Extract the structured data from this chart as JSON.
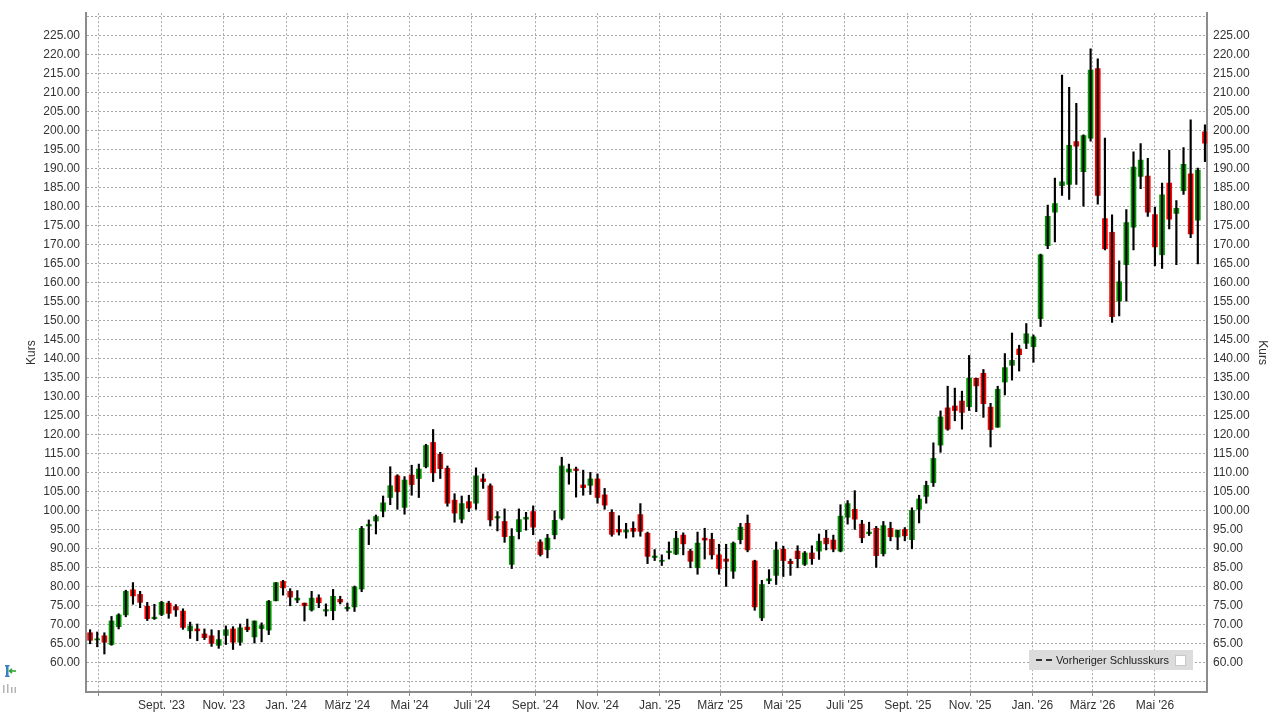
{
  "chart_data": {
    "type": "candlestick",
    "x": [
      "2023-06-23",
      "2023-06-30",
      "2023-07-07",
      "2023-07-14",
      "2023-07-21",
      "2023-07-28",
      "2023-08-04",
      "2023-08-11",
      "2023-08-18",
      "2023-08-25",
      "2023-09-01",
      "2023-09-08",
      "2023-09-15",
      "2023-09-22",
      "2023-09-29",
      "2023-10-06",
      "2023-10-13",
      "2023-10-20",
      "2023-10-27",
      "2023-11-03",
      "2023-11-10",
      "2023-11-17",
      "2023-11-24",
      "2023-12-01",
      "2023-12-08",
      "2023-12-15",
      "2023-12-22",
      "2023-12-29",
      "2024-01-05",
      "2024-01-12",
      "2024-01-19",
      "2024-01-26",
      "2024-02-02",
      "2024-02-09",
      "2024-02-16",
      "2024-02-23",
      "2024-03-01",
      "2024-03-08",
      "2024-03-15",
      "2024-03-22",
      "2024-03-29",
      "2024-04-05",
      "2024-04-12",
      "2024-04-19",
      "2024-04-26",
      "2024-05-03",
      "2024-05-10",
      "2024-05-17",
      "2024-05-24",
      "2024-05-31",
      "2024-06-07",
      "2024-06-14",
      "2024-06-21",
      "2024-06-28",
      "2024-07-05",
      "2024-07-12",
      "2024-07-19",
      "2024-07-26",
      "2024-08-02",
      "2024-08-09",
      "2024-08-16",
      "2024-08-23",
      "2024-08-30",
      "2024-09-06",
      "2024-09-13",
      "2024-09-20",
      "2024-09-27",
      "2024-10-04",
      "2024-10-11",
      "2024-10-18",
      "2024-10-25",
      "2024-11-01",
      "2024-11-08",
      "2024-11-15",
      "2024-11-22",
      "2024-11-29",
      "2024-12-06",
      "2024-12-13",
      "2024-12-20",
      "2024-12-27",
      "2025-01-03",
      "2025-01-10",
      "2025-01-17",
      "2025-01-24",
      "2025-01-31",
      "2025-02-07",
      "2025-02-14",
      "2025-02-21",
      "2025-02-28",
      "2025-03-07",
      "2025-03-14",
      "2025-03-21",
      "2025-03-28",
      "2025-04-04",
      "2025-04-11",
      "2025-04-18",
      "2025-04-25",
      "2025-05-02",
      "2025-05-09",
      "2025-05-16",
      "2025-05-23",
      "2025-05-30",
      "2025-06-06",
      "2025-06-13",
      "2025-06-20",
      "2025-06-27",
      "2025-07-04",
      "2025-07-11",
      "2025-07-18",
      "2025-07-25",
      "2025-08-01",
      "2025-08-08",
      "2025-08-15",
      "2025-08-22",
      "2025-08-29",
      "2025-09-05",
      "2025-09-12",
      "2025-09-19",
      "2025-09-26",
      "2025-10-03",
      "2025-10-10",
      "2025-10-17",
      "2025-10-24",
      "2025-10-31",
      "2025-11-07",
      "2025-11-14",
      "2025-11-21",
      "2025-11-28",
      "2025-12-05",
      "2025-12-12",
      "2025-12-19",
      "2025-12-26",
      "2026-01-02",
      "2026-01-09",
      "2026-01-16",
      "2026-01-23",
      "2026-01-30",
      "2026-02-06",
      "2026-02-13",
      "2026-02-20",
      "2026-02-27",
      "2026-03-06",
      "2026-03-13",
      "2026-03-20",
      "2026-03-27",
      "2026-04-03",
      "2026-04-10",
      "2026-04-17",
      "2026-04-24",
      "2026-05-01",
      "2026-05-08",
      "2026-05-15",
      "2026-05-22",
      "2026-05-29",
      "2026-06-05",
      "2026-06-12",
      "2026-06-19"
    ],
    "ohlc": [
      [
        67.9,
        68.7,
        65.0,
        65.9
      ],
      [
        66.0,
        68.1,
        64.2,
        66.3
      ],
      [
        67.1,
        67.9,
        62.3,
        65.4
      ],
      [
        64.8,
        72.2,
        64.6,
        71.0
      ],
      [
        69.5,
        72.9,
        68.9,
        72.6
      ],
      [
        72.6,
        79.1,
        72.1,
        78.8
      ],
      [
        79.2,
        81.1,
        75.4,
        77.6
      ],
      [
        78.0,
        78.8,
        74.5,
        75.9
      ],
      [
        74.9,
        75.9,
        71.1,
        71.6
      ],
      [
        71.6,
        75.4,
        71.4,
        72.0
      ],
      [
        72.7,
        76.2,
        72.4,
        75.9
      ],
      [
        75.7,
        76.2,
        71.7,
        73.0
      ],
      [
        74.8,
        75.3,
        72.2,
        73.9
      ],
      [
        73.6,
        74.2,
        68.8,
        69.3
      ],
      [
        68.4,
        70.7,
        66.4,
        69.7
      ],
      [
        68.9,
        70.2,
        65.8,
        68.4
      ],
      [
        67.6,
        68.9,
        66.1,
        66.6
      ],
      [
        67.1,
        68.7,
        64.3,
        65.1
      ],
      [
        64.6,
        68.5,
        63.8,
        66.1
      ],
      [
        67.2,
        69.7,
        64.8,
        68.7
      ],
      [
        68.9,
        69.5,
        63.5,
        65.4
      ],
      [
        65.4,
        70.2,
        64.6,
        69.2
      ],
      [
        69.4,
        71.5,
        68.2,
        68.7
      ],
      [
        66.8,
        71.0,
        65.2,
        71.0
      ],
      [
        69.0,
        70.5,
        65.5,
        69.8
      ],
      [
        68.6,
        76.4,
        67.4,
        76.2
      ],
      [
        76.3,
        81.1,
        76.3,
        81.1
      ],
      [
        81.4,
        81.7,
        77.8,
        79.7
      ],
      [
        78.8,
        79.5,
        75.0,
        77.3
      ],
      [
        76.5,
        79.0,
        75.8,
        77.0
      ],
      [
        75.7,
        75.7,
        71.0,
        75.0
      ],
      [
        73.9,
        78.8,
        73.6,
        77.0
      ],
      [
        77.1,
        77.9,
        74.5,
        75.8
      ],
      [
        73.6,
        75.5,
        72.3,
        74.0
      ],
      [
        73.7,
        79.3,
        71.3,
        77.5
      ],
      [
        76.7,
        77.5,
        75.5,
        76.0
      ],
      [
        74.2,
        75.7,
        73.6,
        74.6
      ],
      [
        74.7,
        80.2,
        73.5,
        79.9
      ],
      [
        79.4,
        95.9,
        78.7,
        95.4
      ],
      [
        96.0,
        97.6,
        91.1,
        96.4
      ],
      [
        97.3,
        98.9,
        93.9,
        98.5
      ],
      [
        99.9,
        103.9,
        98.4,
        102.1
      ],
      [
        103.5,
        111.6,
        101.6,
        106.6
      ],
      [
        109.2,
        109.5,
        100.4,
        105.0
      ],
      [
        100.9,
        109.0,
        99.1,
        108.1
      ],
      [
        109.4,
        112.0,
        104.1,
        106.9
      ],
      [
        108.5,
        112.3,
        103.5,
        111.0
      ],
      [
        111.6,
        117.5,
        111.3,
        117.2
      ],
      [
        118.0,
        121.4,
        107.7,
        110.0
      ],
      [
        114.9,
        115.4,
        108.5,
        111.1
      ],
      [
        111.2,
        111.8,
        101.2,
        102.0
      ],
      [
        102.8,
        104.5,
        97.0,
        99.4
      ],
      [
        97.8,
        103.9,
        96.8,
        101.9
      ],
      [
        102.4,
        104.1,
        99.8,
        100.7
      ],
      [
        102.0,
        111.3,
        100.4,
        109.2
      ],
      [
        108.4,
        109.7,
        105.9,
        107.7
      ],
      [
        106.6,
        107.1,
        96.0,
        97.6
      ],
      [
        98.1,
        99.8,
        94.7,
        98.5
      ],
      [
        97.2,
        100.5,
        91.7,
        93.2
      ],
      [
        85.9,
        95.3,
        84.8,
        93.3
      ],
      [
        94.5,
        100.5,
        92.6,
        97.7
      ],
      [
        97.8,
        99.6,
        94.9,
        98.3
      ],
      [
        99.8,
        101.3,
        93.7,
        95.7
      ],
      [
        91.8,
        92.4,
        88.1,
        88.5
      ],
      [
        89.8,
        93.8,
        87.6,
        92.8
      ],
      [
        93.7,
        100.0,
        92.6,
        97.5
      ],
      [
        98.0,
        114.1,
        97.6,
        111.8
      ],
      [
        110.2,
        112.3,
        107.0,
        111.0
      ],
      [
        111.0,
        111.5,
        103.6,
        110.6
      ],
      [
        106.8,
        110.7,
        104.1,
        106.1
      ],
      [
        106.7,
        110.1,
        104.3,
        108.4
      ],
      [
        108.4,
        109.7,
        102.0,
        103.5
      ],
      [
        104.2,
        105.9,
        100.4,
        101.5
      ],
      [
        99.6,
        100.3,
        93.3,
        93.8
      ],
      [
        95.1,
        98.7,
        93.6,
        94.4
      ],
      [
        94.4,
        96.7,
        92.8,
        94.9
      ],
      [
        95.4,
        97.1,
        93.1,
        94.6
      ],
      [
        99.0,
        101.9,
        93.3,
        94.6
      ],
      [
        94.1,
        94.4,
        86.1,
        88.0
      ],
      [
        87.7,
        89.8,
        86.9,
        88.1
      ],
      [
        86.7,
        88.4,
        85.6,
        87.0
      ],
      [
        89.0,
        91.8,
        87.3,
        89.4
      ],
      [
        88.6,
        94.6,
        88.5,
        92.8
      ],
      [
        93.6,
        94.2,
        88.4,
        91.3
      ],
      [
        89.4,
        89.9,
        85.0,
        86.7
      ],
      [
        85.0,
        94.4,
        83.3,
        91.5
      ],
      [
        92.8,
        95.4,
        87.3,
        92.3
      ],
      [
        92.5,
        94.1,
        87.3,
        88.4
      ],
      [
        88.4,
        91.2,
        83.3,
        84.8
      ],
      [
        87.3,
        91.2,
        80.1,
        86.7
      ],
      [
        84.1,
        91.8,
        82.2,
        91.5
      ],
      [
        92.4,
        96.7,
        91.3,
        95.7
      ],
      [
        96.7,
        98.9,
        89.2,
        89.7
      ],
      [
        86.8,
        87.0,
        73.8,
        74.7
      ],
      [
        71.8,
        81.7,
        71.1,
        80.6
      ],
      [
        81.6,
        84.5,
        80.8,
        82.1
      ],
      [
        83.0,
        91.8,
        80.6,
        89.7
      ],
      [
        89.9,
        90.7,
        82.7,
        86.9
      ],
      [
        86.7,
        87.3,
        83.0,
        86.1
      ],
      [
        89.4,
        90.8,
        85.0,
        87.4
      ],
      [
        85.9,
        89.3,
        85.6,
        88.9
      ],
      [
        88.9,
        90.8,
        85.9,
        87.4
      ],
      [
        89.4,
        93.9,
        87.2,
        92.0
      ],
      [
        92.8,
        94.9,
        89.7,
        91.3
      ],
      [
        92.3,
        93.6,
        89.2,
        89.9
      ],
      [
        89.4,
        101.6,
        89.2,
        98.6
      ],
      [
        98.3,
        102.7,
        96.5,
        101.9
      ],
      [
        100.4,
        105.3,
        95.1,
        97.8
      ],
      [
        96.5,
        97.5,
        91.6,
        92.9
      ],
      [
        94.0,
        97.0,
        93.5,
        94.4
      ],
      [
        95.4,
        95.9,
        85.1,
        88.2
      ],
      [
        88.7,
        97.2,
        88.1,
        96.1
      ],
      [
        95.4,
        97.0,
        92.1,
        93.2
      ],
      [
        93.1,
        94.9,
        89.8,
        94.9
      ],
      [
        95.1,
        95.6,
        92.1,
        93.4
      ],
      [
        92.4,
        100.8,
        90.0,
        100.1
      ],
      [
        100.4,
        104.1,
        96.8,
        103.1
      ],
      [
        103.8,
        107.8,
        102.0,
        106.7
      ],
      [
        107.4,
        117.9,
        106.4,
        113.8
      ],
      [
        117.3,
        126.3,
        115.4,
        124.7
      ],
      [
        127.1,
        132.8,
        121.2,
        121.5
      ],
      [
        127.6,
        132.3,
        123.7,
        126.4
      ],
      [
        128.9,
        131.5,
        121.5,
        125.9
      ],
      [
        127.4,
        140.9,
        126.4,
        134.9
      ],
      [
        134.9,
        134.9,
        126.1,
        132.9
      ],
      [
        136.2,
        137.2,
        124.6,
        128.2
      ],
      [
        127.3,
        128.3,
        116.8,
        121.4
      ],
      [
        122.0,
        132.8,
        122.0,
        132.0
      ],
      [
        133.9,
        141.4,
        130.5,
        137.7
      ],
      [
        138.3,
        146.8,
        134.4,
        139.6
      ],
      [
        142.6,
        143.6,
        136.8,
        141.1
      ],
      [
        144.1,
        149.3,
        142.7,
        146.6
      ],
      [
        143.2,
        146.3,
        139.1,
        145.8
      ],
      [
        150.6,
        167.6,
        148.5,
        167.4
      ],
      [
        169.8,
        180.5,
        169.0,
        177.5
      ],
      [
        178.6,
        187.6,
        170.8,
        180.9
      ],
      [
        185.6,
        214.7,
        183.0,
        186.6
      ],
      [
        185.9,
        211.5,
        182.0,
        196.2
      ],
      [
        197.2,
        207.3,
        185.9,
        196.0
      ],
      [
        189.3,
        199.0,
        180.2,
        198.8
      ],
      [
        198.1,
        221.6,
        197.3,
        216.0
      ],
      [
        216.4,
        219.0,
        180.7,
        183.0
      ],
      [
        176.9,
        198.1,
        168.7,
        169.0
      ],
      [
        173.3,
        177.9,
        149.6,
        151.1
      ],
      [
        155.2,
        165.8,
        151.3,
        160.3
      ],
      [
        164.8,
        179.3,
        155.2,
        175.9
      ],
      [
        174.7,
        194.5,
        168.7,
        190.5
      ],
      [
        188.0,
        196.7,
        184.8,
        192.3
      ],
      [
        188.1,
        192.8,
        177.5,
        178.6
      ],
      [
        178.0,
        179.9,
        164.5,
        169.5
      ],
      [
        167.4,
        186.3,
        163.8,
        183.2
      ],
      [
        186.3,
        194.9,
        174.2,
        176.8
      ],
      [
        178.3,
        181.7,
        164.8,
        179.6
      ],
      [
        184.3,
        195.6,
        183.3,
        191.2
      ],
      [
        188.7,
        202.9,
        171.9,
        172.9
      ],
      [
        176.5,
        190.2,
        165.0,
        189.7
      ],
      [
        199.8,
        201.6,
        191.9,
        196.8
      ]
    ],
    "colors": [
      "#ff0000",
      "#009900",
      "#ff0000",
      "#009900",
      "#009900",
      "#009900",
      "#ff0000",
      "#ff0000",
      "#ff0000",
      "#009900",
      "#009900",
      "#ff0000",
      "#ff0000",
      "#ff0000",
      "#009900",
      "#ff0000",
      "#ff0000",
      "#ff0000",
      "#009900",
      "#009900",
      "#ff0000",
      "#009900",
      "#ff0000",
      "#009900",
      "#009900",
      "#009900",
      "#009900",
      "#ff0000",
      "#ff0000",
      "#009900",
      "#ff0000",
      "#009900",
      "#ff0000",
      "#009900",
      "#009900",
      "#ff0000",
      "#009900",
      "#009900",
      "#009900",
      "#009900",
      "#009900",
      "#009900",
      "#009900",
      "#ff0000",
      "#009900",
      "#ff0000",
      "#009900",
      "#009900",
      "#ff0000",
      "#ff0000",
      "#ff0000",
      "#ff0000",
      "#009900",
      "#ff0000",
      "#009900",
      "#ff0000",
      "#ff0000",
      "#009900",
      "#ff0000",
      "#009900",
      "#009900",
      "#009900",
      "#ff0000",
      "#ff0000",
      "#009900",
      "#009900",
      "#009900",
      "#009900",
      "#ff0000",
      "#ff0000",
      "#009900",
      "#ff0000",
      "#ff0000",
      "#ff0000",
      "#ff0000",
      "#009900",
      "#ff0000",
      "#ff0000",
      "#ff0000",
      "#009900",
      "#009900",
      "#009900",
      "#009900",
      "#ff0000",
      "#ff0000",
      "#009900",
      "#ff0000",
      "#ff0000",
      "#ff0000",
      "#ff0000",
      "#009900",
      "#009900",
      "#ff0000",
      "#ff0000",
      "#009900",
      "#009900",
      "#009900",
      "#ff0000",
      "#ff0000",
      "#ff0000",
      "#009900",
      "#ff0000",
      "#009900",
      "#ff0000",
      "#ff0000",
      "#009900",
      "#009900",
      "#ff0000",
      "#ff0000",
      "#009900",
      "#ff0000",
      "#009900",
      "#ff0000",
      "#009900",
      "#ff0000",
      "#009900",
      "#009900",
      "#009900",
      "#009900",
      "#009900",
      "#ff0000",
      "#ff0000",
      "#ff0000",
      "#009900",
      "#ff0000",
      "#ff0000",
      "#ff0000",
      "#009900",
      "#009900",
      "#009900",
      "#ff0000",
      "#009900",
      "#009900",
      "#009900",
      "#009900",
      "#009900",
      "#009900",
      "#009900",
      "#ff0000",
      "#009900",
      "#009900",
      "#ff0000",
      "#ff0000",
      "#ff0000",
      "#009900",
      "#009900",
      "#009900",
      "#009900",
      "#ff0000",
      "#ff0000",
      "#009900",
      "#ff0000",
      "#009900",
      "#009900",
      "#ff0000",
      "#009900",
      "#ff0000"
    ],
    "series": [
      {
        "type": "line",
        "name": "Vorheriger Schlusskurs",
        "color": "#333333",
        "line_style": "dashed",
        "values": [
          null,
          null,
          null,
          null,
          null,
          null,
          null,
          null,
          null,
          null,
          null,
          null,
          null,
          null,
          null,
          null,
          null,
          null,
          null,
          null,
          null,
          null,
          null,
          null,
          null,
          null,
          null,
          null,
          null,
          null,
          null,
          null,
          null,
          null,
          null,
          null,
          null,
          null,
          null,
          null,
          null,
          null,
          null,
          null,
          null,
          null,
          null,
          null,
          null,
          null,
          null,
          null,
          null,
          null,
          null,
          null,
          null,
          null,
          null,
          null,
          null,
          null,
          null,
          null,
          null,
          null,
          null,
          null,
          null,
          null,
          null,
          null,
          null,
          null,
          null,
          null,
          null,
          null,
          null,
          null,
          null,
          null,
          null,
          null,
          null,
          null,
          null,
          null,
          null,
          null,
          null,
          null,
          null,
          null,
          null,
          null,
          null,
          null,
          null,
          null,
          null,
          null,
          null,
          null,
          null,
          null,
          null,
          null,
          null,
          null,
          null,
          null,
          null,
          null,
          null,
          null,
          null,
          null,
          null,
          null,
          null,
          null,
          null,
          null,
          null,
          null,
          null,
          null,
          null,
          null,
          null,
          null,
          null,
          null,
          null,
          null,
          null,
          null,
          null,
          null,
          null,
          null,
          null,
          null,
          null,
          null,
          null,
          null,
          null,
          null,
          null,
          null,
          null,
          null,
          null,
          null,
          null
        ]
      }
    ],
    "xlim": [
      "2023-06-19",
      "2026-06-21"
    ],
    "xticks": [
      {
        "value": "2023-07-01",
        "label": null
      },
      {
        "value": "2023-09-01",
        "label": "Sept. '23"
      },
      {
        "value": "2023-11-01",
        "label": "Nov. '23"
      },
      {
        "value": "2024-01-01",
        "label": "Jan. '24"
      },
      {
        "value": "2024-03-01",
        "label": "März '24"
      },
      {
        "value": "2024-05-01",
        "label": "Mai '24"
      },
      {
        "value": "2024-07-01",
        "label": "Juli '24"
      },
      {
        "value": "2024-09-01",
        "label": "Sept. '24"
      },
      {
        "value": "2024-11-01",
        "label": "Nov. '24"
      },
      {
        "value": "2025-01-01",
        "label": "Jan. '25"
      },
      {
        "value": "2025-03-01",
        "label": "März '25"
      },
      {
        "value": "2025-05-01",
        "label": "Mai '25"
      },
      {
        "value": "2025-07-01",
        "label": "Juli '25"
      },
      {
        "value": "2025-09-01",
        "label": "Sept. '25"
      },
      {
        "value": "2025-11-01",
        "label": "Nov. '25"
      },
      {
        "value": "2026-01-01",
        "label": "Jan. '26"
      },
      {
        "value": "2026-03-01",
        "label": "März '26"
      },
      {
        "value": "2026-05-01",
        "label": "Mai '26"
      }
    ],
    "ylim": [
      52.3,
      231.0
    ],
    "yticks": [
      {
        "value": 55,
        "label": null
      },
      {
        "value": 60,
        "label": "60.00"
      },
      {
        "value": 65,
        "label": "65.00"
      },
      {
        "value": 70,
        "label": "70.00"
      },
      {
        "value": 75,
        "label": "75.00"
      },
      {
        "value": 80,
        "label": "80.00"
      },
      {
        "value": 85,
        "label": "85.00"
      },
      {
        "value": 90,
        "label": "90.00"
      },
      {
        "value": 95,
        "label": "95.00"
      },
      {
        "value": 100,
        "label": "100.00"
      },
      {
        "value": 105,
        "label": "105.00"
      },
      {
        "value": 110,
        "label": "110.00"
      },
      {
        "value": 115,
        "label": "115.00"
      },
      {
        "value": 120,
        "label": "120.00"
      },
      {
        "value": 125,
        "label": "125.00"
      },
      {
        "value": 130,
        "label": "130.00"
      },
      {
        "value": 135,
        "label": "135.00"
      },
      {
        "value": 140,
        "label": "140.00"
      },
      {
        "value": 145,
        "label": "145.00"
      },
      {
        "value": 150,
        "label": "150.00"
      },
      {
        "value": 155,
        "label": "155.00"
      },
      {
        "value": 160,
        "label": "160.00"
      },
      {
        "value": 165,
        "label": "165.00"
      },
      {
        "value": 170,
        "label": "170.00"
      },
      {
        "value": 175,
        "label": "175.00"
      },
      {
        "value": 180,
        "label": "180.00"
      },
      {
        "value": 185,
        "label": "185.00"
      },
      {
        "value": 190,
        "label": "190.00"
      },
      {
        "value": 195,
        "label": "195.00"
      },
      {
        "value": 200,
        "label": "200.00"
      },
      {
        "value": 205,
        "label": "205.00"
      },
      {
        "value": 210,
        "label": "210.00"
      },
      {
        "value": 215,
        "label": "215.00"
      },
      {
        "value": 220,
        "label": "220.00"
      },
      {
        "value": 225,
        "label": "225.00"
      },
      {
        "value": 230,
        "label": null
      }
    ],
    "ylabel": "Kurs",
    "y2lim": [
      52.3,
      231.0
    ],
    "y2ticks": [
      {
        "value": 55,
        "label": null
      },
      {
        "value": 60,
        "label": "60.00"
      },
      {
        "value": 65,
        "label": "65.00"
      },
      {
        "value": 70,
        "label": "70.00"
      },
      {
        "value": 75,
        "label": "75.00"
      },
      {
        "value": 80,
        "label": "80.00"
      },
      {
        "value": 85,
        "label": "85.00"
      },
      {
        "value": 90,
        "label": "90.00"
      },
      {
        "value": 95,
        "label": "95.00"
      },
      {
        "value": 100,
        "label": "100.00"
      },
      {
        "value": 105,
        "label": "105.00"
      },
      {
        "value": 110,
        "label": "110.00"
      },
      {
        "value": 115,
        "label": "115.00"
      },
      {
        "value": 120,
        "label": "120.00"
      },
      {
        "value": 125,
        "label": "125.00"
      },
      {
        "value": 130,
        "label": "130.00"
      },
      {
        "value": 135,
        "label": "135.00"
      },
      {
        "value": 140,
        "label": "140.00"
      },
      {
        "value": 145,
        "label": "145.00"
      },
      {
        "value": 150,
        "label": "150.00"
      },
      {
        "value": 155,
        "label": "155.00"
      },
      {
        "value": 160,
        "label": "160.00"
      },
      {
        "value": 165,
        "label": "165.00"
      },
      {
        "value": 170,
        "label": "170.00"
      },
      {
        "value": 175,
        "label": "175.00"
      },
      {
        "value": 180,
        "label": "180.00"
      },
      {
        "value": 185,
        "label": "185.00"
      },
      {
        "value": 190,
        "label": "190.00"
      },
      {
        "value": 195,
        "label": "195.00"
      },
      {
        "value": 200,
        "label": "200.00"
      },
      {
        "value": 205,
        "label": "205.00"
      },
      {
        "value": 210,
        "label": "210.00"
      },
      {
        "value": 215,
        "label": "215.00"
      },
      {
        "value": 220,
        "label": "220.00"
      },
      {
        "value": 225,
        "label": "225.00"
      },
      {
        "value": 230,
        "label": null
      }
    ],
    "y2label": "Kurs",
    "grid": true,
    "legend": "bottom right"
  }
}
